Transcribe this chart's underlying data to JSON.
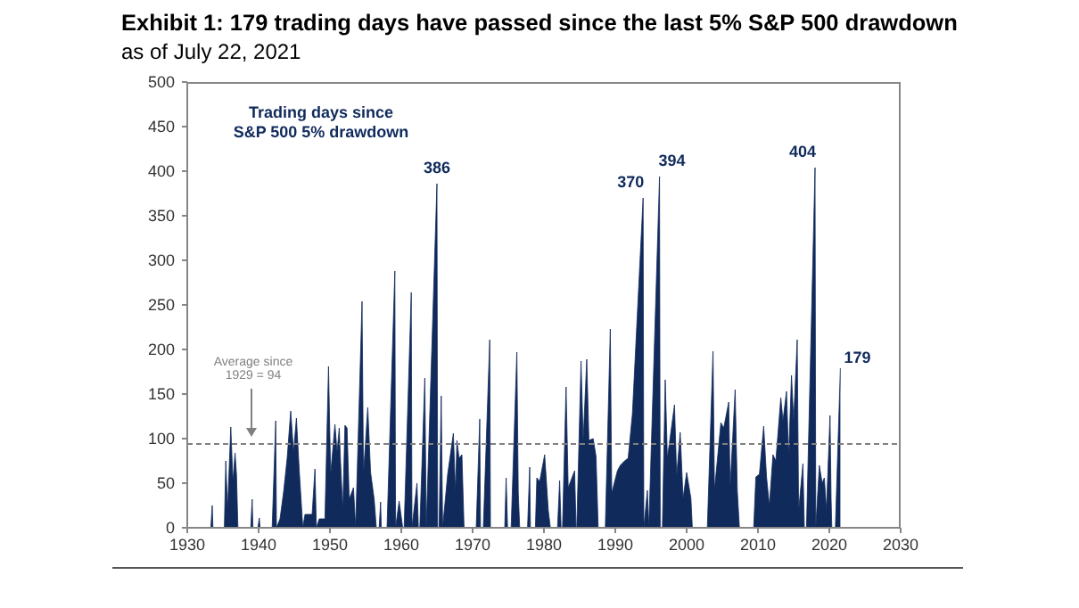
{
  "chart_data": {
    "type": "area",
    "title": "Exhibit 1: 179 trading days have passed since the last 5% S&P 500 drawdown",
    "subtitle": "as of July 22, 2021",
    "x": [
      1930,
      1933.3,
      1933.5,
      1933.6,
      1935.2,
      1935.4,
      1935.65,
      1936.1,
      1936.4,
      1936.7,
      1936.9,
      1937.1,
      1938.9,
      1939.1,
      1939.2,
      1939.9,
      1940.1,
      1940.2,
      1941.9,
      1942.4,
      1942.5,
      1943.0,
      1943.5,
      1944.0,
      1944.5,
      1944.9,
      1945.3,
      1945.7,
      1946.2,
      1946.5,
      1947.5,
      1947.9,
      1948.1,
      1948.5,
      1949.3,
      1949.8,
      1950.1,
      1950.7,
      1951.0,
      1951.3,
      1951.5,
      1951.8,
      1952.1,
      1952.4,
      1952.7,
      1953.3,
      1953.6,
      1954.5,
      1954.7,
      1955.3,
      1955.7,
      1956.2,
      1956.5,
      1956.9,
      1957.1,
      1957.2,
      1958.0,
      1959.1,
      1959.2,
      1959.7,
      1960.2,
      1960.4,
      1961.4,
      1961.5,
      1962.2,
      1962.4,
      1962.6,
      1963.3,
      1963.5,
      1965.0,
      1965.1,
      1965.3,
      1965.6,
      1965.8,
      1966.5,
      1967.3,
      1967.6,
      1967.8,
      1968.1,
      1968.5,
      1968.8,
      1970.5,
      1971.0,
      1971.1,
      1971.5,
      1972.4,
      1972.5,
      1974.5,
      1974.7,
      1974.9,
      1975.4,
      1976.2,
      1976.4,
      1976.6,
      1977.7,
      1978.0,
      1978.1,
      1978.8,
      1979.0,
      1979.4,
      1980.1,
      1980.6,
      1980.9,
      1981.9,
      1982.2,
      1982.4,
      1982.6,
      1983.1,
      1983.4,
      1984.3,
      1984.5,
      1984.6,
      1985.2,
      1985.5,
      1986.0,
      1986.3,
      1986.9,
      1987.3,
      1987.6,
      1988.6,
      1989.3,
      1989.5,
      1990.3,
      1990.7,
      1991.3,
      1991.8,
      1992.4,
      1993.9,
      1994.0,
      1994.5,
      1994.7,
      1996.2,
      1996.3,
      1996.6,
      1997.0,
      1997.3,
      1998.3,
      1998.6,
      1999.1,
      1999.5,
      2000.0,
      2000.6,
      2000.8,
      2002.9,
      2003.7,
      2003.9,
      2004.8,
      2005.2,
      2005.9,
      2006.1,
      2006.8,
      2007.1,
      2007.4,
      2009.4,
      2009.7,
      2010.2,
      2010.8,
      2011.2,
      2011.6,
      2012.1,
      2012.5,
      2013.2,
      2013.5,
      2014.0,
      2014.3,
      2014.7,
      2015.0,
      2015.5,
      2015.7,
      2016.3,
      2016.5,
      2016.8,
      2018.0,
      2018.1,
      2018.6,
      2019.0,
      2019.3,
      2019.6,
      2020.1,
      2020.25,
      2020.35,
      2020.85,
      2021.55
    ],
    "series": [
      {
        "name": "Trading days since S&P 500 5% drawdown",
        "color": "#102a5c",
        "values": [
          0,
          0,
          25,
          0,
          0,
          75,
          20,
          113,
          52,
          84,
          60,
          0,
          0,
          32,
          0,
          0,
          11,
          0,
          0,
          120,
          0,
          10,
          40,
          78,
          131,
          85,
          123,
          64,
          0,
          15,
          15,
          66,
          0,
          10,
          10,
          181,
          60,
          116,
          85,
          112,
          72,
          20,
          115,
          112,
          32,
          45,
          0,
          254,
          60,
          135,
          62,
          32,
          0,
          0,
          29,
          0,
          0,
          288,
          0,
          30,
          0,
          0,
          264,
          0,
          50,
          0,
          0,
          168,
          0,
          386,
          0,
          0,
          148,
          0,
          60,
          106,
          40,
          98,
          78,
          82,
          0,
          0,
          122,
          0,
          0,
          211,
          0,
          0,
          56,
          0,
          0,
          197,
          39,
          0,
          0,
          68,
          0,
          0,
          56,
          52,
          82,
          20,
          0,
          0,
          53,
          0,
          0,
          158,
          45,
          64,
          0,
          0,
          187,
          98,
          189,
          98,
          100,
          80,
          0,
          0,
          223,
          39,
          64,
          70,
          75,
          78,
          128,
          370,
          0,
          42,
          0,
          394,
          0,
          0,
          166,
          78,
          138,
          58,
          107,
          33,
          62,
          33,
          0,
          0,
          198,
          42,
          118,
          112,
          141,
          45,
          155,
          42,
          0,
          0,
          57,
          60,
          114,
          57,
          25,
          82,
          75,
          146,
          120,
          153,
          80,
          171,
          120,
          211,
          19,
          72,
          0,
          0,
          404,
          0,
          70,
          50,
          56,
          20,
          126,
          33,
          0,
          0,
          179
        ],
        "value_labels": [
          null,
          null,
          null,
          null,
          null,
          null,
          null,
          null,
          null,
          null,
          null,
          null,
          null,
          null,
          null,
          null,
          null,
          null,
          null,
          null,
          null,
          null,
          null,
          null,
          null,
          null,
          null,
          null,
          null,
          null,
          null,
          null,
          null,
          null,
          null,
          null,
          null,
          null,
          null,
          null,
          null,
          null,
          null,
          null,
          null,
          null,
          null,
          null,
          null,
          null,
          null,
          null,
          null,
          null,
          null,
          null,
          null,
          null,
          null,
          null,
          null,
          null,
          null,
          null,
          null,
          null,
          null,
          null,
          null,
          "386",
          null,
          null,
          null,
          null,
          null,
          null,
          null,
          null,
          null,
          null,
          null,
          null,
          null,
          null,
          null,
          null,
          null,
          null,
          null,
          null,
          null,
          null,
          null,
          null,
          null,
          null,
          null,
          null,
          null,
          null,
          null,
          null,
          null,
          null,
          null,
          null,
          null,
          null,
          null,
          null,
          null,
          null,
          null,
          null,
          null,
          null,
          null,
          null,
          null,
          null,
          null,
          null,
          null,
          null,
          null,
          null,
          null,
          "370",
          null,
          null,
          null,
          "394",
          null,
          null,
          null,
          null,
          null,
          null,
          null,
          null,
          null,
          null,
          null,
          null,
          null,
          null,
          null,
          null,
          null,
          null,
          null,
          null,
          null,
          null,
          null,
          null,
          null,
          null,
          null,
          null,
          null,
          null,
          null,
          null,
          null,
          null,
          null,
          null,
          null,
          null,
          null,
          null,
          "404",
          null,
          null,
          null,
          null,
          null,
          null,
          null,
          null,
          null,
          "179"
        ]
      }
    ],
    "xlim": [
      1930,
      2030
    ],
    "xticks": [
      1930,
      1940,
      1950,
      1960,
      1970,
      1980,
      1990,
      2000,
      2010,
      2020,
      2030
    ],
    "ylim": [
      0,
      500
    ],
    "yticks": [
      0,
      50,
      100,
      150,
      200,
      250,
      300,
      350,
      400,
      450,
      500
    ],
    "ref_lines": [
      {
        "axis": "y",
        "value": 94,
        "label": "Average since 1929 = 94",
        "color": "#808080",
        "line_style": "dashed"
      }
    ],
    "legend": "top left"
  }
}
